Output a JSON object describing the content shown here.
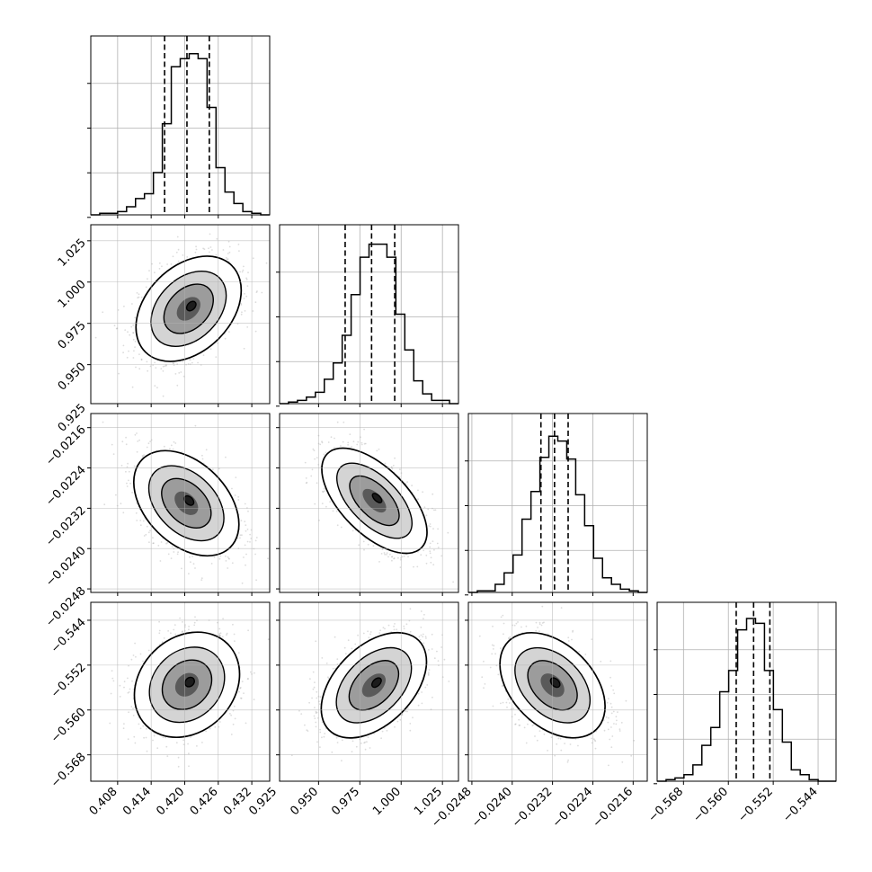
{
  "chart_data": {
    "type": "corner",
    "n_params": 4,
    "grid": true,
    "quantile_lines": "dashed",
    "hist1d": [
      {
        "param_index": 0,
        "range": [
          0.4032,
          0.4352
        ],
        "quantiles": [
          0.4164,
          0.4204,
          0.4244
        ],
        "bins_normalized": [
          0.0,
          0.01,
          0.01,
          0.02,
          0.05,
          0.1,
          0.13,
          0.26,
          0.56,
          0.91,
          0.96,
          0.99,
          0.96,
          0.66,
          0.29,
          0.14,
          0.07,
          0.02,
          0.01,
          0.0
        ]
      },
      {
        "param_index": 1,
        "range": [
          0.9264,
          1.0347
        ],
        "quantiles": [
          0.9661,
          0.9821,
          0.9961
        ],
        "bins_normalized": [
          0.0,
          0.01,
          0.02,
          0.04,
          0.07,
          0.15,
          0.25,
          0.42,
          0.67,
          0.9,
          0.98,
          0.98,
          0.9,
          0.55,
          0.33,
          0.14,
          0.06,
          0.02,
          0.02,
          0.0
        ]
      },
      {
        "param_index": 2,
        "range": [
          -0.02487,
          -0.02132
        ],
        "quantiles": [
          -0.02343,
          -0.02316,
          -0.02289
        ],
        "bins_normalized": [
          0.0,
          0.01,
          0.01,
          0.05,
          0.12,
          0.23,
          0.45,
          0.62,
          0.83,
          0.96,
          0.93,
          0.82,
          0.6,
          0.41,
          0.21,
          0.09,
          0.05,
          0.02,
          0.01,
          0.0
        ]
      },
      {
        "param_index": 3,
        "range": [
          -0.5727,
          -0.5408
        ],
        "quantiles": [
          -0.5586,
          -0.5555,
          -0.5526
        ],
        "bins_normalized": [
          0.0,
          0.01,
          0.02,
          0.04,
          0.1,
          0.22,
          0.33,
          0.55,
          0.68,
          0.93,
          1.0,
          0.97,
          0.68,
          0.44,
          0.24,
          0.07,
          0.04,
          0.01,
          0.0,
          0.0
        ]
      }
    ],
    "hist2d": [
      {
        "x": 0,
        "y": 1,
        "correlation": 0.35,
        "center": [
          0.4207,
          0.9838
        ]
      },
      {
        "x": 0,
        "y": 2,
        "correlation": -0.4,
        "center": [
          0.4203,
          -0.0231
        ]
      },
      {
        "x": 1,
        "y": 2,
        "correlation": -0.6,
        "center": [
          0.9838,
          -0.02305
        ]
      },
      {
        "x": 0,
        "y": 3,
        "correlation": 0.2,
        "center": [
          0.4204,
          -0.5555
        ]
      },
      {
        "x": 1,
        "y": 3,
        "correlation": 0.45,
        "center": [
          0.9835,
          -0.5556
        ]
      },
      {
        "x": 2,
        "y": 3,
        "correlation": -0.4,
        "center": [
          -0.0232,
          -0.5556
        ]
      }
    ],
    "axes": {
      "x": [
        {
          "ticks": [
            0.408,
            0.414,
            0.42,
            0.426,
            0.432
          ],
          "labels": [
            "0.408",
            "0.414",
            "0.420",
            "0.426",
            "0.432"
          ]
        },
        {
          "ticks": [
            0.925,
            0.95,
            0.975,
            1.0,
            1.025
          ],
          "labels": [
            "0.925",
            "0.950",
            "0.975",
            "1.000",
            "1.025"
          ]
        },
        {
          "ticks": [
            -0.0248,
            -0.024,
            -0.0232,
            -0.0224,
            -0.0216
          ],
          "labels": [
            "−0.0248",
            "−0.0240",
            "−0.0232",
            "−0.0224",
            "−0.0216"
          ]
        },
        {
          "ticks": [
            -0.568,
            -0.56,
            -0.552,
            -0.544
          ],
          "labels": [
            "−0.568",
            "−0.560",
            "−0.552",
            "−0.544"
          ]
        }
      ],
      "y": [
        null,
        {
          "ticks": [
            0.925,
            0.95,
            0.975,
            1.0,
            1.025
          ],
          "labels": [
            "0.925",
            "0.950",
            "0.975",
            "1.000",
            "1.025"
          ]
        },
        {
          "ticks": [
            -0.0248,
            -0.024,
            -0.0232,
            -0.0224,
            -0.0216
          ],
          "labels": [
            "−0.0248",
            "−0.0240",
            "−0.0232",
            "−0.0224",
            "−0.0216"
          ]
        },
        {
          "ticks": [
            -0.568,
            -0.56,
            -0.552,
            -0.544
          ],
          "labels": [
            "−0.568",
            "−0.560",
            "−0.552",
            "−0.544"
          ]
        }
      ]
    }
  }
}
